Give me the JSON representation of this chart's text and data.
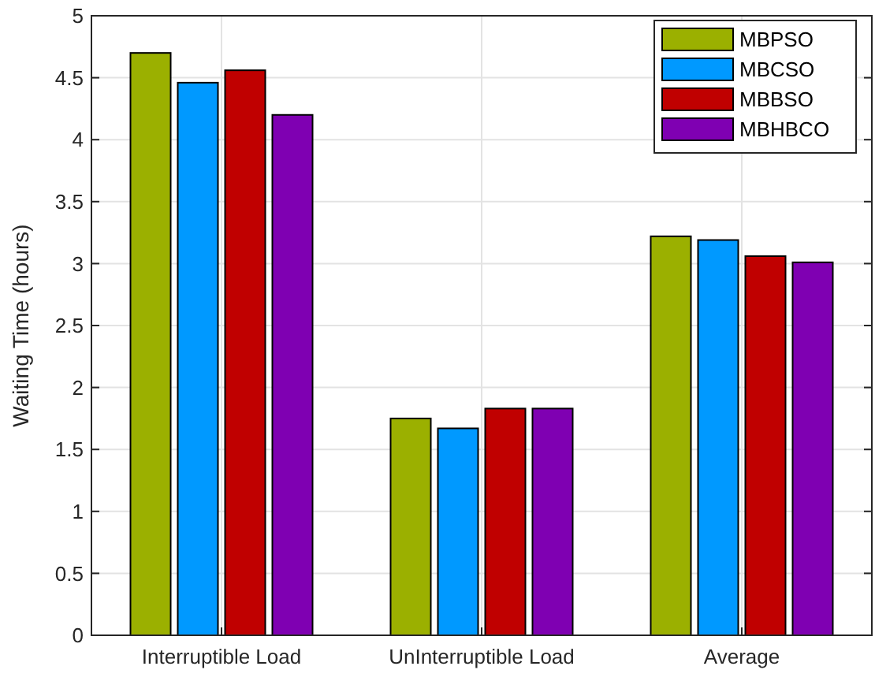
{
  "chart_data": {
    "type": "bar",
    "ylabel": "Waiting Time (hours)",
    "categories": [
      "Interruptible Load",
      "UnInterruptible Load",
      "Average"
    ],
    "series": [
      {
        "name": "MBPSO",
        "color": "#9bb000",
        "values": [
          4.7,
          1.75,
          3.22
        ]
      },
      {
        "name": "MBCSO",
        "color": "#0099ff",
        "values": [
          4.46,
          1.67,
          3.19
        ]
      },
      {
        "name": "MBBSO",
        "color": "#c00000",
        "values": [
          4.56,
          1.83,
          3.06
        ]
      },
      {
        "name": "MBHBCO",
        "color": "#7f00b2",
        "values": [
          4.2,
          1.83,
          3.01
        ]
      }
    ],
    "ylim": [
      0,
      5
    ],
    "yticks": [
      0,
      0.5,
      1,
      1.5,
      2,
      2.5,
      3,
      3.5,
      4,
      4.5,
      5
    ],
    "grid": true,
    "legend": "top right"
  }
}
